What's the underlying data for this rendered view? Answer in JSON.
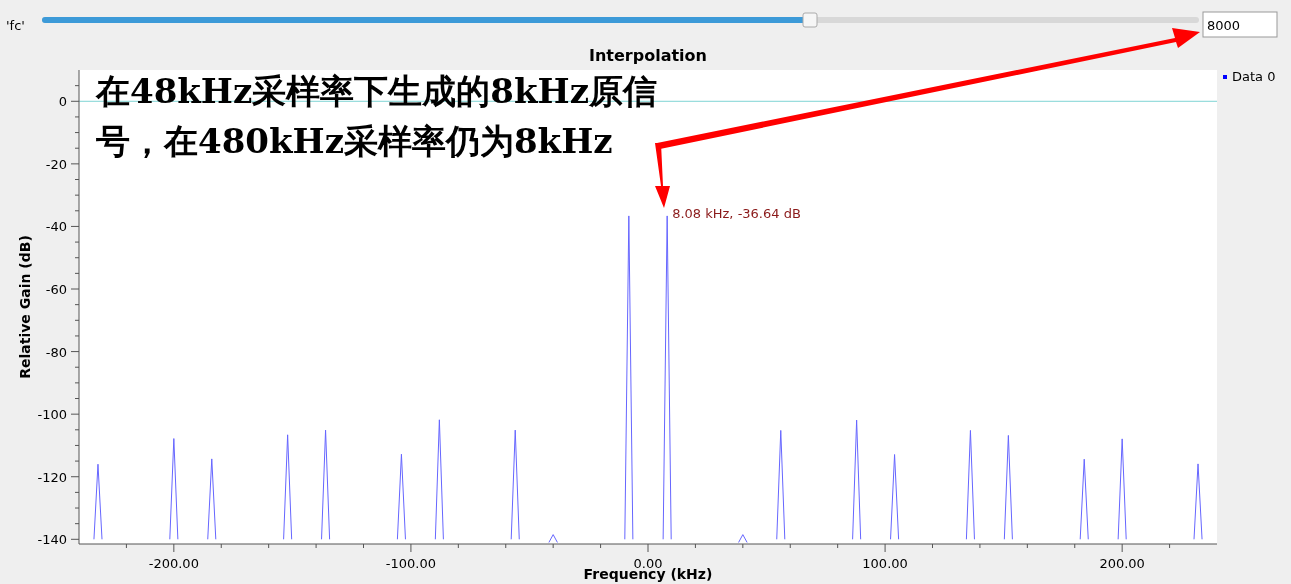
{
  "chart_data": {
    "type": "line",
    "title": "Interpolation",
    "xlabel": "Frequency (kHz)",
    "ylabel": "Relative Gain (dB)",
    "x": [
      -233.7,
      -232,
      -230.3,
      null,
      -201.7,
      -200,
      -198.3,
      null,
      -185.7,
      -184,
      -182.3,
      null,
      -153.7,
      -152,
      -150.3,
      null,
      -137.7,
      -136,
      -134.3,
      null,
      -105.7,
      -104,
      -102.3,
      null,
      -89.7,
      -88,
      -86.3,
      null,
      -57.7,
      -56,
      -54.3,
      null,
      -41.8,
      -40,
      -38.2,
      null,
      -9.78,
      -8.08,
      -6.38,
      null,
      6.38,
      8.08,
      9.78,
      null,
      38.2,
      40,
      41.8,
      null,
      54.3,
      56,
      57.7,
      null,
      86.3,
      88,
      89.7,
      null,
      102.3,
      104,
      105.7,
      null,
      134.3,
      136,
      137.7,
      null,
      150.3,
      152,
      153.7,
      null,
      182.3,
      184,
      185.7,
      null,
      198.3,
      200,
      201.7,
      null,
      230.3,
      232,
      233.7
    ],
    "series": [
      {
        "name": "Data 0",
        "color": "#6666ff",
        "values": [
          -140,
          -116,
          -140,
          null,
          -140,
          -107.8,
          -140,
          null,
          -140,
          -114.3,
          -140,
          null,
          -140,
          -106.6,
          -140,
          null,
          -140,
          -105.1,
          -140,
          null,
          -140,
          -112.8,
          -140,
          null,
          -140,
          -101.8,
          -140,
          null,
          -140,
          -105.1,
          -140,
          null,
          -141,
          -138.5,
          -141,
          null,
          -140,
          -36.64,
          -140,
          null,
          -140,
          -36.64,
          -140,
          null,
          -141,
          -138.5,
          -141,
          null,
          -140,
          -105.2,
          -140,
          null,
          -140,
          -101.9,
          -140,
          null,
          -140,
          -112.9,
          -140,
          null,
          -140,
          -105.2,
          -140,
          null,
          -140,
          -106.8,
          -140,
          null,
          -140,
          -114.4,
          -140,
          null,
          -140,
          -107.9,
          -140,
          null,
          -140,
          -115.9,
          -140
        ]
      }
    ],
    "xlim": [
      -240,
      240
    ],
    "ylim": [
      -141.5,
      10
    ],
    "xticks": [
      {
        "value": -220,
        "label": null
      },
      {
        "value": -200,
        "label": "-200.00"
      },
      {
        "value": -180,
        "label": null
      },
      {
        "value": -160,
        "label": null
      },
      {
        "value": -140,
        "label": null
      },
      {
        "value": -120,
        "label": null
      },
      {
        "value": -100,
        "label": "-100.00"
      },
      {
        "value": -80,
        "label": null
      },
      {
        "value": -60,
        "label": null
      },
      {
        "value": -40,
        "label": null
      },
      {
        "value": -20,
        "label": null
      },
      {
        "value": 0,
        "label": "0.00"
      },
      {
        "value": 20,
        "label": null
      },
      {
        "value": 40,
        "label": null
      },
      {
        "value": 60,
        "label": null
      },
      {
        "value": 80,
        "label": null
      },
      {
        "value": 100,
        "label": "100.00"
      },
      {
        "value": 120,
        "label": null
      },
      {
        "value": 140,
        "label": null
      },
      {
        "value": 160,
        "label": null
      },
      {
        "value": 180,
        "label": null
      },
      {
        "value": 200,
        "label": "200.00"
      },
      {
        "value": 220,
        "label": null
      }
    ],
    "yticks": [
      -140,
      -120,
      -100,
      -80,
      -60,
      -40,
      -20,
      0,
      {
        "value": -135,
        "label": null
      },
      {
        "value": -130,
        "label": null
      },
      {
        "value": -125,
        "label": null
      },
      {
        "value": -115,
        "label": null
      },
      {
        "value": -110,
        "label": null
      },
      {
        "value": -105,
        "label": null
      },
      {
        "value": -95,
        "label": null
      },
      {
        "value": -90,
        "label": null
      },
      {
        "value": -85,
        "label": null
      },
      {
        "value": -75,
        "label": null
      },
      {
        "value": -70,
        "label": null
      },
      {
        "value": -65,
        "label": null
      },
      {
        "value": -55,
        "label": null
      },
      {
        "value": -50,
        "label": null
      },
      {
        "value": -45,
        "label": null
      },
      {
        "value": -35,
        "label": null
      },
      {
        "value": -30,
        "label": null
      },
      {
        "value": -25,
        "label": null
      },
      {
        "value": -15,
        "label": null
      },
      {
        "value": -10,
        "label": null
      },
      {
        "value": -5,
        "label": null
      },
      {
        "value": 5,
        "label": null
      }
    ],
    "ref_lines": [
      {
        "axis": "y",
        "value": 0,
        "color": "#7fd4d4"
      }
    ],
    "legend": "top right",
    "grid": false,
    "marker": "none",
    "line_style": "solid",
    "annotations": [
      "'fc'",
      "8000",
      "在48kHz采样率下生成的8kHz原信号，在480kHz采样率仍为8kHz",
      {
        "text": "8.08 kHz, -36.64 dB",
        "x": 8.08,
        "y": -36.64
      }
    ]
  }
}
